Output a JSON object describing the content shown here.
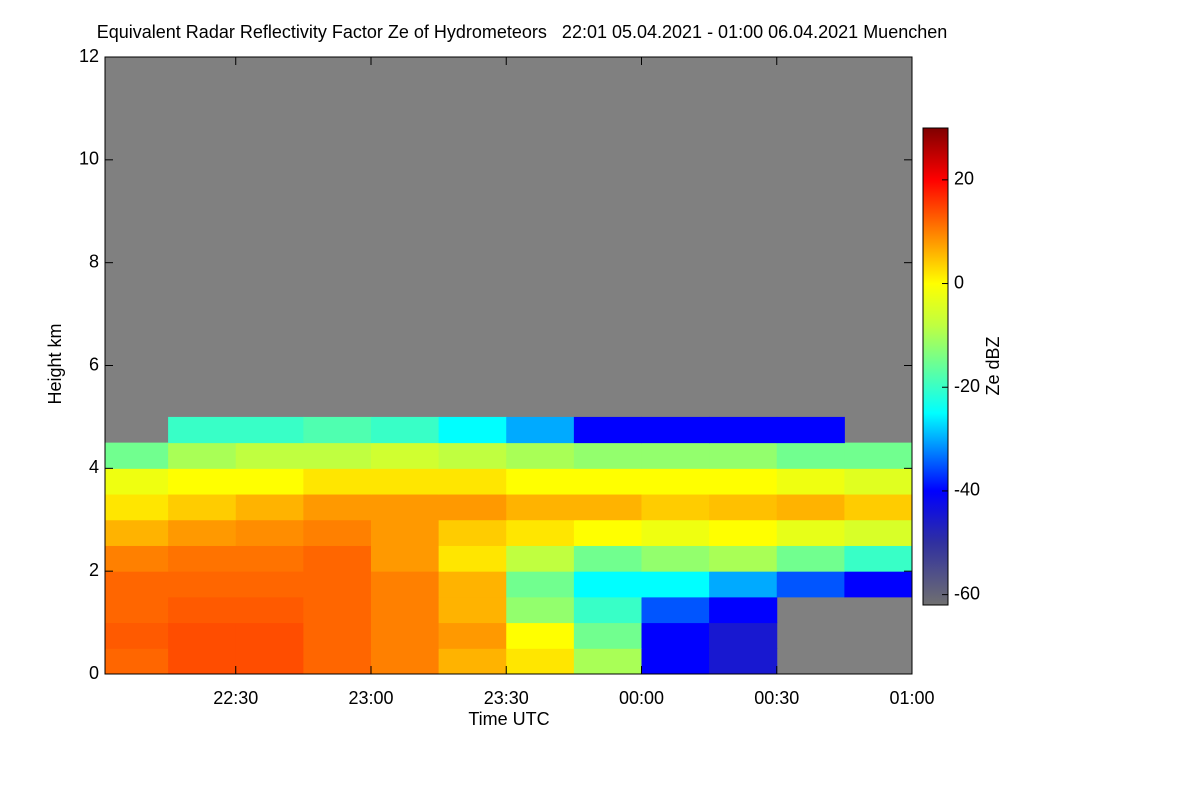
{
  "chart_data": {
    "type": "heatmap",
    "title": "Equivalent Radar Reflectivity Factor Ze of Hydrometeors   22:01 05.04.2021 - 01:00 06.04.2021 Muenchen",
    "x_label": "Time UTC",
    "y_label": "Height km",
    "xlim": [
      22.0167,
      25
    ],
    "xticks": [
      {
        "value": 22.5,
        "label": "22:30"
      },
      {
        "value": 23,
        "label": "23:00"
      },
      {
        "value": 23.5,
        "label": "23:30"
      },
      {
        "value": 24,
        "label": "00:00"
      },
      {
        "value": 24.5,
        "label": "00:30"
      },
      {
        "value": 25,
        "label": "01:00"
      }
    ],
    "ylim": [
      0,
      12
    ],
    "yticks": [
      0,
      2,
      4,
      6,
      8,
      10,
      12
    ],
    "xbins": [
      22.0167,
      22.25,
      22.5,
      22.75,
      23,
      23.25,
      23.5,
      23.75,
      24,
      24.25,
      24.5,
      24.75,
      25
    ],
    "ybins": [
      0,
      0.5,
      1,
      1.5,
      2,
      2.5,
      3,
      3.5,
      4,
      4.5,
      5
    ],
    "z": [
      [
        12,
        14,
        14,
        12,
        10,
        6,
        2,
        -10,
        -40,
        -45,
        null,
        null
      ],
      [
        13,
        14,
        14,
        12,
        10,
        8,
        0,
        -15,
        -40,
        -45,
        null,
        null
      ],
      [
        12,
        13,
        13,
        12,
        10,
        6,
        -12,
        -20,
        -35,
        -40,
        null,
        null
      ],
      [
        12,
        12,
        12,
        12,
        10,
        6,
        -15,
        -25,
        -25,
        -30,
        -35,
        -40
      ],
      [
        10,
        11,
        11,
        12,
        8,
        2,
        -8,
        -15,
        -12,
        -10,
        -15,
        -20
      ],
      [
        6,
        8,
        9,
        10,
        8,
        4,
        2,
        0,
        -2,
        0,
        -3,
        -5
      ],
      [
        2,
        4,
        6,
        8,
        8,
        8,
        6,
        6,
        4,
        5,
        6,
        4
      ],
      [
        -2,
        0,
        0,
        2,
        2,
        2,
        0,
        0,
        0,
        0,
        -2,
        -4
      ],
      [
        -15,
        -10,
        -8,
        -8,
        -6,
        -8,
        -10,
        -12,
        -12,
        -12,
        -15,
        -15
      ],
      [
        null,
        -20,
        -20,
        -18,
        -20,
        -25,
        -30,
        -40,
        -40,
        -40,
        -40,
        null
      ]
    ],
    "background_color": "#808080",
    "colorbar": {
      "label": "Ze dBZ",
      "zlim": [
        -62,
        30
      ],
      "ticks": [
        -60,
        -40,
        -20,
        0,
        20
      ],
      "colormap": [
        {
          "value": -62,
          "color": "#707070"
        },
        {
          "value": -50,
          "color": "#3030a0"
        },
        {
          "value": -40,
          "color": "#0000ff"
        },
        {
          "value": -25,
          "color": "#00ffff"
        },
        {
          "value": -8,
          "color": "#c0ff40"
        },
        {
          "value": 0,
          "color": "#ffff00"
        },
        {
          "value": 10,
          "color": "#ff8000"
        },
        {
          "value": 20,
          "color": "#ff0000"
        },
        {
          "value": 30,
          "color": "#800000"
        }
      ]
    }
  }
}
